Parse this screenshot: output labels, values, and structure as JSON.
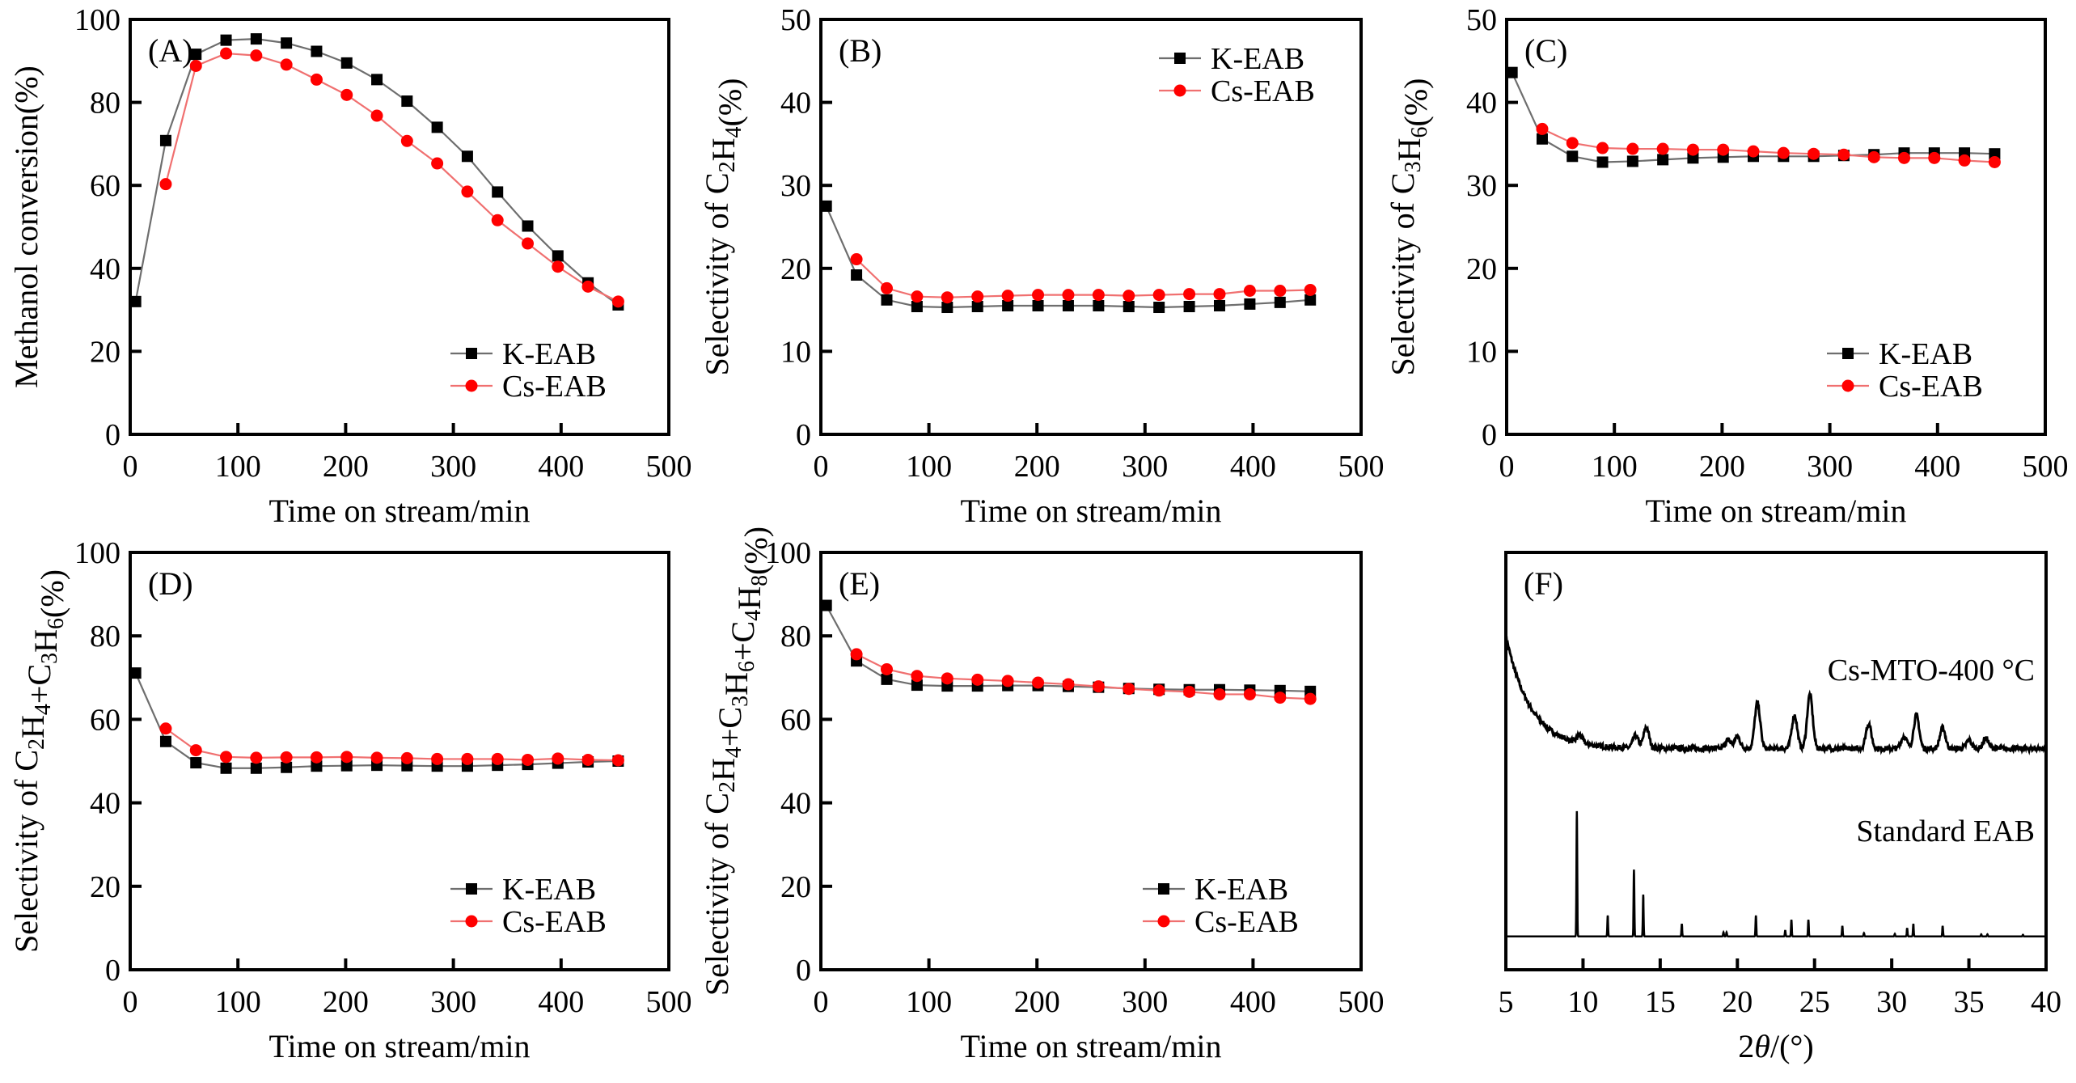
{
  "chart_data": [
    {
      "panel": "A",
      "type": "line",
      "tag": "(A)",
      "title": "",
      "xlabel": "Time on stream/min",
      "ylabel": "Methanol conversion(%)",
      "xlim": [
        0,
        500
      ],
      "ylim": [
        0,
        100
      ],
      "xticks": [
        0,
        100,
        200,
        300,
        400,
        500
      ],
      "yticks": [
        0,
        20,
        40,
        60,
        80,
        100
      ],
      "legend": "bottom-right",
      "grid": false,
      "series": [
        {
          "name": "K-EAB",
          "marker": "square",
          "color": "#000000",
          "line_color": "#6e6e6e",
          "x": [
            5,
            33,
            61,
            89,
            117,
            145,
            173,
            201,
            229,
            257,
            285,
            313,
            341,
            369,
            397,
            425,
            453
          ],
          "y": [
            32.0,
            70.8,
            91.6,
            95.0,
            95.3,
            94.3,
            92.3,
            89.5,
            85.5,
            80.3,
            74.0,
            67.0,
            58.4,
            50.2,
            43.0,
            36.5,
            31.2
          ]
        },
        {
          "name": "Cs-EAB",
          "marker": "circle",
          "color": "#ff0000",
          "line_color": "#f07070",
          "x": [
            33,
            61,
            89,
            117,
            145,
            173,
            201,
            229,
            257,
            285,
            313,
            341,
            369,
            397,
            425,
            453
          ],
          "y": [
            60.3,
            88.8,
            91.8,
            91.3,
            89.1,
            85.5,
            81.8,
            76.8,
            70.7,
            65.3,
            58.5,
            51.6,
            46.0,
            40.4,
            35.6,
            32.0
          ]
        }
      ]
    },
    {
      "panel": "B",
      "type": "line",
      "tag": "(B)",
      "title": "",
      "xlabel": "Time on stream/min",
      "ylabel": "Selectivity of C₂H₄(%)",
      "xlim": [
        0,
        500
      ],
      "ylim": [
        0,
        50
      ],
      "xticks": [
        0,
        100,
        200,
        300,
        400,
        500
      ],
      "yticks": [
        0,
        10,
        20,
        30,
        40,
        50
      ],
      "legend": "top-right",
      "grid": false,
      "series": [
        {
          "name": "K-EAB",
          "marker": "square",
          "color": "#000000",
          "line_color": "#6e6e6e",
          "x": [
            5,
            33,
            61,
            89,
            117,
            145,
            173,
            201,
            229,
            257,
            285,
            313,
            341,
            369,
            397,
            425,
            453
          ],
          "y": [
            27.5,
            19.2,
            16.2,
            15.4,
            15.3,
            15.4,
            15.5,
            15.5,
            15.5,
            15.5,
            15.4,
            15.3,
            15.4,
            15.5,
            15.7,
            15.9,
            16.2
          ]
        },
        {
          "name": "Cs-EAB",
          "marker": "circle",
          "color": "#ff0000",
          "line_color": "#f07070",
          "x": [
            33,
            61,
            89,
            117,
            145,
            173,
            201,
            229,
            257,
            285,
            313,
            341,
            369,
            397,
            425,
            453
          ],
          "y": [
            21.1,
            17.6,
            16.6,
            16.5,
            16.6,
            16.7,
            16.8,
            16.8,
            16.8,
            16.7,
            16.8,
            16.9,
            16.9,
            17.3,
            17.3,
            17.4
          ]
        }
      ]
    },
    {
      "panel": "C",
      "type": "line",
      "tag": "(C)",
      "title": "",
      "xlabel": "Time on stream/min",
      "ylabel": "Selectivity of C₃H₆(%)",
      "xlim": [
        0,
        500
      ],
      "ylim": [
        0,
        50
      ],
      "xticks": [
        0,
        100,
        200,
        300,
        400,
        500
      ],
      "yticks": [
        0,
        10,
        20,
        30,
        40,
        50
      ],
      "legend": "bottom-right",
      "grid": false,
      "series": [
        {
          "name": "K-EAB",
          "marker": "square",
          "color": "#000000",
          "line_color": "#6e6e6e",
          "x": [
            5,
            33,
            61,
            89,
            117,
            145,
            173,
            201,
            229,
            257,
            285,
            313,
            341,
            369,
            397,
            425,
            453
          ],
          "y": [
            43.6,
            35.6,
            33.5,
            32.8,
            32.9,
            33.1,
            33.3,
            33.4,
            33.5,
            33.5,
            33.5,
            33.6,
            33.7,
            33.9,
            33.9,
            33.9,
            33.8
          ]
        },
        {
          "name": "Cs-EAB",
          "marker": "circle",
          "color": "#ff0000",
          "line_color": "#f07070",
          "x": [
            33,
            61,
            89,
            117,
            145,
            173,
            201,
            229,
            257,
            285,
            313,
            341,
            369,
            397,
            425,
            453
          ],
          "y": [
            36.8,
            35.1,
            34.5,
            34.4,
            34.4,
            34.3,
            34.3,
            34.1,
            33.9,
            33.8,
            33.7,
            33.4,
            33.3,
            33.3,
            33.0,
            32.8
          ]
        }
      ]
    },
    {
      "panel": "D",
      "type": "line",
      "tag": "(D)",
      "title": "",
      "xlabel": "Time on stream/min",
      "ylabel": "Selectivity of C₂H₄+C₃H₆(%)",
      "xlim": [
        0,
        500
      ],
      "ylim": [
        0,
        100
      ],
      "xticks": [
        0,
        100,
        200,
        300,
        400,
        500
      ],
      "yticks": [
        0,
        20,
        40,
        60,
        80,
        100
      ],
      "legend": "bottom-right",
      "grid": false,
      "series": [
        {
          "name": "K-EAB",
          "marker": "square",
          "color": "#000000",
          "line_color": "#6e6e6e",
          "x": [
            5,
            33,
            61,
            89,
            117,
            145,
            173,
            201,
            229,
            257,
            285,
            313,
            341,
            369,
            397,
            425,
            453
          ],
          "y": [
            71.1,
            54.7,
            49.6,
            48.3,
            48.3,
            48.5,
            48.8,
            48.9,
            49.0,
            48.9,
            48.8,
            48.8,
            49.0,
            49.2,
            49.5,
            49.8,
            50.0
          ]
        },
        {
          "name": "Cs-EAB",
          "marker": "circle",
          "color": "#ff0000",
          "line_color": "#f07070",
          "x": [
            33,
            61,
            89,
            117,
            145,
            173,
            201,
            229,
            257,
            285,
            313,
            341,
            369,
            397,
            425,
            453
          ],
          "y": [
            57.8,
            52.6,
            51.0,
            50.8,
            50.9,
            50.9,
            51.0,
            50.8,
            50.7,
            50.5,
            50.5,
            50.5,
            50.3,
            50.6,
            50.3,
            50.2
          ]
        }
      ]
    },
    {
      "panel": "E",
      "type": "line",
      "tag": "(E)",
      "title": "",
      "xlabel": "Time on stream/min",
      "ylabel": "Selectivity of C₂H₄+C₃H₆+C₄H₈(%)",
      "xlim": [
        0,
        500
      ],
      "ylim": [
        0,
        100
      ],
      "xticks": [
        0,
        100,
        200,
        300,
        400,
        500
      ],
      "yticks": [
        0,
        20,
        40,
        60,
        80,
        100
      ],
      "legend": "bottom-right",
      "grid": false,
      "series": [
        {
          "name": "K-EAB",
          "marker": "square",
          "color": "#000000",
          "line_color": "#6e6e6e",
          "x": [
            5,
            33,
            61,
            89,
            117,
            145,
            173,
            201,
            229,
            257,
            285,
            313,
            341,
            369,
            397,
            425,
            453
          ],
          "y": [
            87.3,
            74.0,
            69.6,
            68.2,
            68.0,
            68.0,
            68.1,
            68.1,
            67.9,
            67.7,
            67.4,
            67.2,
            67.1,
            67.1,
            67.0,
            66.9,
            66.7
          ]
        },
        {
          "name": "Cs-EAB",
          "marker": "circle",
          "color": "#ff0000",
          "line_color": "#f07070",
          "x": [
            33,
            61,
            89,
            117,
            145,
            173,
            201,
            229,
            257,
            285,
            313,
            341,
            369,
            397,
            425,
            453
          ],
          "y": [
            75.6,
            72.0,
            70.4,
            69.8,
            69.5,
            69.2,
            68.8,
            68.4,
            67.9,
            67.3,
            66.9,
            66.6,
            66.0,
            66.0,
            65.2,
            64.9
          ]
        }
      ]
    },
    {
      "panel": "F",
      "type": "line",
      "tag": "(F)",
      "title": "",
      "xlabel": "2θ/(°)",
      "ylabel": "",
      "xlim": [
        5,
        40
      ],
      "ylim": [
        0,
        1
      ],
      "xticks": [
        5,
        10,
        15,
        20,
        25,
        30,
        35,
        40
      ],
      "yticks": [],
      "legend": "none",
      "grid": false,
      "annotations": [
        "Cs-MTO-400 °C",
        "Standard EAB"
      ],
      "series": [
        {
          "name": "Cs-MTO-400 °C",
          "style": "noisy-pattern",
          "color": "#000000",
          "baseline": 0.53,
          "background_decay": {
            "start": 0.8,
            "tau_deg": 1.6
          },
          "peaks": [
            {
              "pos": 9.8,
              "height": 0.02
            },
            {
              "pos": 13.4,
              "height": 0.03
            },
            {
              "pos": 14.1,
              "height": 0.05
            },
            {
              "pos": 19.4,
              "height": 0.02
            },
            {
              "pos": 20.0,
              "height": 0.03
            },
            {
              "pos": 21.3,
              "height": 0.11
            },
            {
              "pos": 23.7,
              "height": 0.08
            },
            {
              "pos": 24.7,
              "height": 0.13
            },
            {
              "pos": 28.5,
              "height": 0.06
            },
            {
              "pos": 30.8,
              "height": 0.03
            },
            {
              "pos": 31.6,
              "height": 0.08
            },
            {
              "pos": 33.3,
              "height": 0.05
            },
            {
              "pos": 35.0,
              "height": 0.02
            },
            {
              "pos": 36.1,
              "height": 0.025
            }
          ]
        },
        {
          "name": "Standard EAB",
          "style": "stick-pattern",
          "color": "#000000",
          "baseline": 0.08,
          "peaks": [
            {
              "pos": 9.6,
              "height": 0.3
            },
            {
              "pos": 11.6,
              "height": 0.05
            },
            {
              "pos": 13.3,
              "height": 0.16
            },
            {
              "pos": 13.9,
              "height": 0.1
            },
            {
              "pos": 16.4,
              "height": 0.03
            },
            {
              "pos": 19.1,
              "height": 0.01
            },
            {
              "pos": 19.3,
              "height": 0.01
            },
            {
              "pos": 21.2,
              "height": 0.05
            },
            {
              "pos": 23.1,
              "height": 0.015
            },
            {
              "pos": 23.5,
              "height": 0.04
            },
            {
              "pos": 24.6,
              "height": 0.04
            },
            {
              "pos": 26.8,
              "height": 0.025
            },
            {
              "pos": 28.2,
              "height": 0.008
            },
            {
              "pos": 30.2,
              "height": 0.006
            },
            {
              "pos": 31.0,
              "height": 0.02
            },
            {
              "pos": 31.4,
              "height": 0.03
            },
            {
              "pos": 33.3,
              "height": 0.025
            },
            {
              "pos": 35.8,
              "height": 0.005
            },
            {
              "pos": 36.2,
              "height": 0.005
            },
            {
              "pos": 38.5,
              "height": 0.004
            }
          ]
        }
      ]
    }
  ]
}
